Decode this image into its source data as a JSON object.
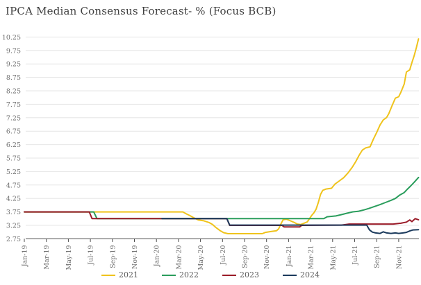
{
  "title": "IPCA Median Consensus Forecast- % (Focus BCB)",
  "colors": {
    "title_text": "#3f3f3f",
    "tick_text": "#6e6e6e",
    "gridline": "#e6e6e6",
    "axis_line": "#4a4a4a"
  },
  "chart_data": {
    "type": "line",
    "title": "IPCA Median Consensus Forecast- % (Focus BCB)",
    "xlabel": "",
    "ylabel": "",
    "ylim": [
      2.75,
      10.25
    ],
    "ytick_step": 0.5,
    "grid": "horizontal",
    "legend_position": "bottom",
    "y_tick_labels": [
      "10.25",
      "9.75",
      "9.25",
      "8.75",
      "8.25",
      "7.75",
      "7.25",
      "6.75",
      "6.25",
      "5.75",
      "5.25",
      "4.75",
      "4.25",
      "3.75",
      "3.25",
      "2.75"
    ],
    "x_tick_labels": [
      "Jan-19",
      "Mar-19",
      "May-19",
      "Jul-19",
      "Sep-19",
      "Nov-19",
      "Jan-20",
      "Mar-20",
      "May-20",
      "Jul-20",
      "Sep-20",
      "Nov-20",
      "Jan-21",
      "Mar-21",
      "May-21",
      "Jul-21",
      "Sep-21",
      "Nov-21"
    ],
    "x_unit": "months_since_Jan-19",
    "series": [
      {
        "name": "2021",
        "color": "#efc31c",
        "points": [
          [
            0,
            3.75
          ],
          [
            14.4,
            3.75
          ],
          [
            14.7,
            3.68
          ],
          [
            15.0,
            3.62
          ],
          [
            15.4,
            3.53
          ],
          [
            15.8,
            3.45
          ],
          [
            16.3,
            3.42
          ],
          [
            16.8,
            3.35
          ],
          [
            17.1,
            3.28
          ],
          [
            17.4,
            3.17
          ],
          [
            17.8,
            3.05
          ],
          [
            18.1,
            2.98
          ],
          [
            18.5,
            2.94
          ],
          [
            21.6,
            2.94
          ],
          [
            21.9,
            2.99
          ],
          [
            22.4,
            3.02
          ],
          [
            22.9,
            3.05
          ],
          [
            23.1,
            3.12
          ],
          [
            23.3,
            3.3
          ],
          [
            23.5,
            3.46
          ],
          [
            23.8,
            3.48
          ],
          [
            24.1,
            3.43
          ],
          [
            24.5,
            3.36
          ],
          [
            24.8,
            3.3
          ],
          [
            25.1,
            3.28
          ],
          [
            25.4,
            3.33
          ],
          [
            25.7,
            3.38
          ],
          [
            25.9,
            3.5
          ],
          [
            26.1,
            3.62
          ],
          [
            26.3,
            3.72
          ],
          [
            26.5,
            3.85
          ],
          [
            26.7,
            4.1
          ],
          [
            26.9,
            4.4
          ],
          [
            27.1,
            4.55
          ],
          [
            27.4,
            4.6
          ],
          [
            27.9,
            4.63
          ],
          [
            28.2,
            4.78
          ],
          [
            28.6,
            4.9
          ],
          [
            29.0,
            5.02
          ],
          [
            29.4,
            5.2
          ],
          [
            29.8,
            5.42
          ],
          [
            30.1,
            5.62
          ],
          [
            30.4,
            5.85
          ],
          [
            30.7,
            6.05
          ],
          [
            31.0,
            6.13
          ],
          [
            31.4,
            6.17
          ],
          [
            31.7,
            6.45
          ],
          [
            32.0,
            6.7
          ],
          [
            32.3,
            6.98
          ],
          [
            32.6,
            7.17
          ],
          [
            32.9,
            7.26
          ],
          [
            33.1,
            7.4
          ],
          [
            33.4,
            7.7
          ],
          [
            33.7,
            7.98
          ],
          [
            34.0,
            8.03
          ],
          [
            34.2,
            8.2
          ],
          [
            34.5,
            8.5
          ],
          [
            34.7,
            8.95
          ],
          [
            35.0,
            9.03
          ],
          [
            35.2,
            9.3
          ],
          [
            35.4,
            9.55
          ],
          [
            35.6,
            9.85
          ],
          [
            35.8,
            10.18
          ]
        ]
      },
      {
        "name": "2022",
        "color": "#2a9d5c",
        "points": [
          [
            0,
            3.75
          ],
          [
            6.3,
            3.75
          ],
          [
            6.6,
            3.5
          ],
          [
            27.2,
            3.5
          ],
          [
            27.5,
            3.57
          ],
          [
            28.3,
            3.6
          ],
          [
            28.8,
            3.65
          ],
          [
            29.3,
            3.7
          ],
          [
            29.8,
            3.75
          ],
          [
            30.3,
            3.77
          ],
          [
            30.8,
            3.82
          ],
          [
            31.3,
            3.88
          ],
          [
            31.8,
            3.95
          ],
          [
            32.3,
            4.02
          ],
          [
            32.8,
            4.1
          ],
          [
            33.3,
            4.18
          ],
          [
            33.7,
            4.25
          ],
          [
            34.1,
            4.38
          ],
          [
            34.5,
            4.47
          ],
          [
            34.8,
            4.6
          ],
          [
            35.1,
            4.72
          ],
          [
            35.4,
            4.85
          ],
          [
            35.8,
            5.03
          ]
        ]
      },
      {
        "name": "2023",
        "color": "#9a1b28",
        "points": [
          [
            0,
            3.75
          ],
          [
            5.9,
            3.75
          ],
          [
            6.15,
            3.5
          ],
          [
            18.4,
            3.5
          ],
          [
            18.65,
            3.25
          ],
          [
            23.4,
            3.25
          ],
          [
            23.6,
            3.19
          ],
          [
            25.0,
            3.19
          ],
          [
            25.2,
            3.25
          ],
          [
            28.8,
            3.26
          ],
          [
            29.5,
            3.3
          ],
          [
            33.5,
            3.3
          ],
          [
            34.2,
            3.33
          ],
          [
            34.7,
            3.37
          ],
          [
            35.0,
            3.45
          ],
          [
            35.2,
            3.39
          ],
          [
            35.5,
            3.5
          ],
          [
            35.8,
            3.46
          ]
        ]
      },
      {
        "name": "2024",
        "color": "#1b3a5c",
        "points": [
          [
            12.5,
            3.5
          ],
          [
            18.4,
            3.5
          ],
          [
            18.65,
            3.26
          ],
          [
            31.1,
            3.26
          ],
          [
            31.35,
            3.08
          ],
          [
            31.6,
            3.0
          ],
          [
            31.9,
            2.97
          ],
          [
            32.3,
            2.95
          ],
          [
            32.6,
            3.01
          ],
          [
            32.9,
            2.97
          ],
          [
            33.3,
            2.95
          ],
          [
            33.7,
            2.97
          ],
          [
            34.0,
            2.95
          ],
          [
            34.4,
            2.97
          ],
          [
            34.7,
            2.99
          ],
          [
            35.0,
            3.04
          ],
          [
            35.3,
            3.08
          ],
          [
            35.8,
            3.09
          ]
        ]
      }
    ]
  }
}
